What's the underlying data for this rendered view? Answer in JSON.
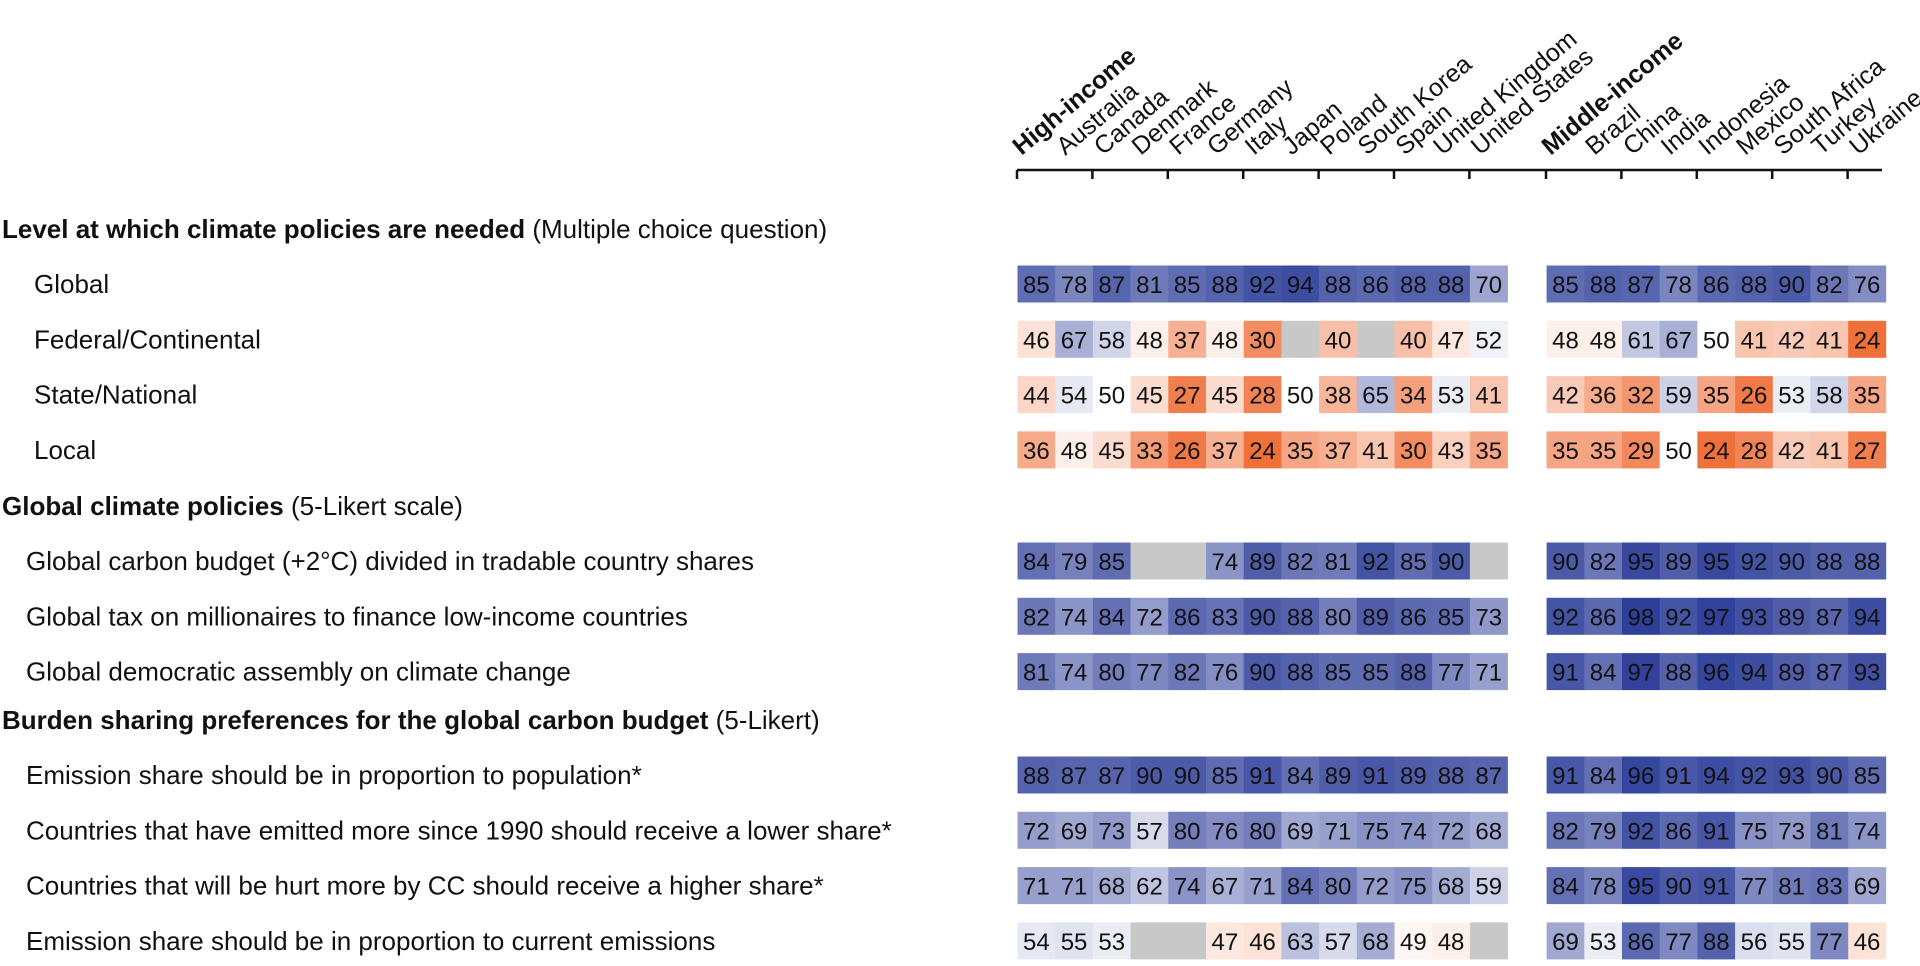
{
  "chart_data": {
    "type": "heatmap",
    "columns": [
      {
        "label": "High-income",
        "group": true
      },
      {
        "label": "Australia"
      },
      {
        "label": "Canada"
      },
      {
        "label": "Denmark"
      },
      {
        "label": "France"
      },
      {
        "label": "Germany"
      },
      {
        "label": "Italy"
      },
      {
        "label": "Japan"
      },
      {
        "label": "Poland"
      },
      {
        "label": "South Korea"
      },
      {
        "label": "Spain"
      },
      {
        "label": "United Kingdom"
      },
      {
        "label": "United States"
      },
      {
        "label": "Middle-income",
        "group": true
      },
      {
        "label": "Brazil"
      },
      {
        "label": "China"
      },
      {
        "label": "India"
      },
      {
        "label": "Indonesia"
      },
      {
        "label": "Mexico"
      },
      {
        "label": "South Africa"
      },
      {
        "label": "Turkey"
      },
      {
        "label": "Ukraine"
      }
    ],
    "sections": [
      {
        "title_bold": "Level at which climate policies are needed",
        "title_rest": " (Multiple choice question)",
        "rows": [
          {
            "label": "Global",
            "high": [
              85,
              78,
              87,
              81,
              85,
              88,
              92,
              94,
              88,
              86,
              88,
              88,
              70
            ],
            "middle": [
              85,
              88,
              87,
              78,
              86,
              88,
              90,
              82,
              76
            ]
          },
          {
            "label": "Federal/Continental",
            "high": [
              46,
              67,
              58,
              48,
              37,
              48,
              30,
              null,
              40,
              null,
              40,
              47,
              52
            ],
            "middle": [
              48,
              48,
              61,
              67,
              50,
              41,
              42,
              41,
              24
            ]
          },
          {
            "label": "State/National",
            "high": [
              44,
              54,
              50,
              45,
              27,
              45,
              28,
              50,
              38,
              65,
              34,
              53,
              41
            ],
            "middle": [
              42,
              36,
              32,
              59,
              35,
              26,
              53,
              58,
              35
            ]
          },
          {
            "label": "Local",
            "high": [
              36,
              48,
              45,
              33,
              26,
              37,
              24,
              35,
              37,
              41,
              30,
              43,
              35
            ],
            "middle": [
              35,
              35,
              29,
              50,
              24,
              28,
              42,
              41,
              27
            ]
          }
        ]
      },
      {
        "title_bold": "Global climate policies",
        "title_rest": " (5-Likert scale)",
        "rows": [
          {
            "label": "Global carbon budget (+2°C) divided in tradable country shares",
            "high": [
              84,
              79,
              85,
              null,
              null,
              74,
              89,
              82,
              81,
              92,
              85,
              90,
              null
            ],
            "middle": [
              90,
              82,
              95,
              89,
              95,
              92,
              90,
              88,
              88
            ]
          },
          {
            "label": "Global tax on millionaires to finance low-income countries",
            "high": [
              82,
              74,
              84,
              72,
              86,
              83,
              90,
              88,
              80,
              89,
              86,
              85,
              73
            ],
            "middle": [
              92,
              86,
              98,
              92,
              97,
              93,
              89,
              87,
              94
            ]
          },
          {
            "label": "Global democratic assembly on climate change",
            "high": [
              81,
              74,
              80,
              77,
              82,
              76,
              90,
              88,
              85,
              85,
              88,
              77,
              71
            ],
            "middle": [
              91,
              84,
              97,
              88,
              96,
              94,
              89,
              87,
              93
            ]
          }
        ]
      },
      {
        "title_bold": "Burden sharing preferences for the global carbon budget",
        "title_rest": " (5-Likert)",
        "rows": [
          {
            "label": "Emission share should be in proportion to population*",
            "high": [
              88,
              87,
              87,
              90,
              90,
              85,
              91,
              84,
              89,
              91,
              89,
              88,
              87
            ],
            "middle": [
              91,
              84,
              96,
              91,
              94,
              92,
              93,
              90,
              85
            ]
          },
          {
            "label": "Countries that have emitted more since 1990 should receive a lower share*",
            "high": [
              72,
              69,
              73,
              57,
              80,
              76,
              80,
              69,
              71,
              75,
              74,
              72,
              68
            ],
            "middle": [
              82,
              79,
              92,
              86,
              91,
              75,
              73,
              81,
              74
            ]
          },
          {
            "label": "Countries that will be hurt more by CC should receive a higher share*",
            "high": [
              71,
              71,
              68,
              62,
              74,
              67,
              71,
              84,
              80,
              72,
              75,
              68,
              59
            ],
            "middle": [
              84,
              78,
              95,
              90,
              91,
              77,
              81,
              83,
              69
            ]
          },
          {
            "label": "Emission share should be in proportion to current emissions",
            "high": [
              54,
              55,
              53,
              null,
              null,
              47,
              46,
              63,
              57,
              68,
              49,
              48,
              null
            ],
            "middle": [
              69,
              53,
              86,
              77,
              88,
              56,
              55,
              77,
              46
            ]
          }
        ]
      }
    ],
    "color_scale": {
      "midpoint": 50,
      "low_color": "#f0703a",
      "mid_color": "#ffffff",
      "high_color": "#2e3f9a",
      "missing_color": "#c8c8c8"
    }
  }
}
